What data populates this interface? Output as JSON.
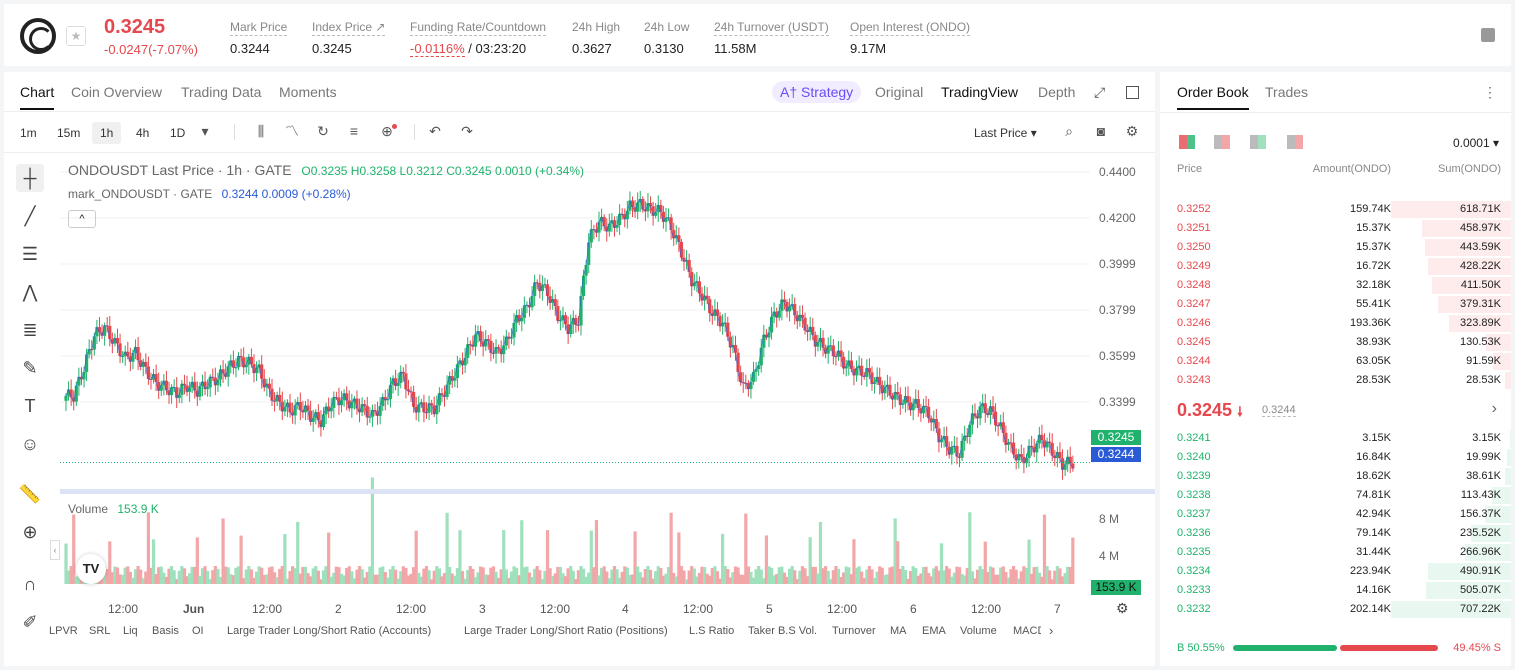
{
  "header": {
    "last_price": "0.3245",
    "change": "-0.0247(-7.07%)",
    "stats": [
      {
        "label": "Mark Price",
        "value": "0.3244"
      },
      {
        "label": "Index Price ↗",
        "value": "0.3245"
      },
      {
        "label": "Funding Rate/Countdown",
        "value_red": "-0.0116%",
        "value": " / 03:23:20"
      },
      {
        "label": "24h High",
        "value": "0.3627"
      },
      {
        "label": "24h Low",
        "value": "0.3130"
      },
      {
        "label": "24h Turnover (USDT)",
        "value": "11.58M"
      },
      {
        "label": "Open Interest (ONDO)",
        "value": "9.17M"
      }
    ]
  },
  "chart_tabs": [
    "Chart",
    "Coin Overview",
    "Trading Data",
    "Moments"
  ],
  "view_tabs": {
    "strategy": "A† Strategy",
    "original": "Original",
    "tradingview": "TradingView",
    "depth": "Depth"
  },
  "intervals": [
    "1m",
    "15m",
    "1h",
    "4h",
    "1D"
  ],
  "price_type": "Last Price",
  "legend": {
    "main": "ONDOUSDT Last Price · 1h · GATE",
    "ohlc": {
      "o": "0.3235",
      "h": "0.3258",
      "l": "0.3212",
      "c": "0.3245",
      "chg": "0.0010 (+0.34%)"
    },
    "mark_label": "mark_ONDOUSDT · GATE",
    "mark_value": "0.3244 0.0009 (+0.28%)"
  },
  "volume_label": "Volume",
  "volume_value": "153.9 K",
  "y_ticks": [
    "0.4400",
    "0.4200",
    "0.3999",
    "0.3799",
    "0.3599",
    "0.3399"
  ],
  "price_tag_last": "0.3245",
  "price_tag_mark": "0.3244",
  "vol_ticks": [
    "8 M",
    "4 M"
  ],
  "vol_tag": "153.9 K",
  "x_ticks": [
    "12:00",
    "Jun",
    "12:00",
    "2",
    "12:00",
    "3",
    "12:00",
    "4",
    "12:00",
    "5",
    "12:00",
    "6",
    "12:00",
    "7"
  ],
  "indicators": [
    "LPVR",
    "SRL",
    "Liq",
    "Basis",
    "OI",
    "Large Trader Long/Short Ratio (Accounts)",
    "Large Trader Long/Short Ratio (Positions)",
    "L.S Ratio",
    "Taker B.S Vol.",
    "Turnover",
    "MA",
    "EMA",
    "Volume",
    "MACD"
  ],
  "chart_data": {
    "type": "candlestick",
    "ylim": [
      0.31,
      0.445
    ],
    "series": [
      {
        "name": "ONDOUSDT",
        "values_close": [
          0.351,
          0.362,
          0.375,
          0.378,
          0.372,
          0.366,
          0.368,
          0.361,
          0.356,
          0.354,
          0.352,
          0.355,
          0.353,
          0.356,
          0.358,
          0.362,
          0.365,
          0.364,
          0.361,
          0.352,
          0.348,
          0.345,
          0.347,
          0.343,
          0.341,
          0.348,
          0.35,
          0.348,
          0.346,
          0.343,
          0.348,
          0.356,
          0.359,
          0.347,
          0.346,
          0.346,
          0.353,
          0.36,
          0.367,
          0.375,
          0.372,
          0.368,
          0.372,
          0.381,
          0.386,
          0.396,
          0.392,
          0.383,
          0.378,
          0.381,
          0.413,
          0.42,
          0.418,
          0.421,
          0.426,
          0.427,
          0.425,
          0.424,
          0.418,
          0.408,
          0.397,
          0.391,
          0.384,
          0.38,
          0.37,
          0.354,
          0.358,
          0.373,
          0.383,
          0.388,
          0.384,
          0.379,
          0.373,
          0.37,
          0.368,
          0.363,
          0.361,
          0.36,
          0.356,
          0.353,
          0.35,
          0.348,
          0.347,
          0.344,
          0.335,
          0.33,
          0.328,
          0.34,
          0.346,
          0.345,
          0.338,
          0.33,
          0.325,
          0.33,
          0.334,
          0.329,
          0.324,
          0.3245
        ]
      }
    ],
    "volume_unit": "M"
  },
  "orderbook": {
    "tabs": [
      "Order Book",
      "Trades"
    ],
    "precision": "0.0001",
    "headers": [
      "Price",
      "Amount(ONDO)",
      "Sum(ONDO)"
    ],
    "asks": [
      {
        "price": "0.3252",
        "amount": "159.74K",
        "sum": "618.71K",
        "fill": 1.0
      },
      {
        "price": "0.3251",
        "amount": "15.37K",
        "sum": "458.97K",
        "fill": 0.74
      },
      {
        "price": "0.3250",
        "amount": "15.37K",
        "sum": "443.59K",
        "fill": 0.72
      },
      {
        "price": "0.3249",
        "amount": "16.72K",
        "sum": "428.22K",
        "fill": 0.69
      },
      {
        "price": "0.3248",
        "amount": "32.18K",
        "sum": "411.50K",
        "fill": 0.66
      },
      {
        "price": "0.3247",
        "amount": "55.41K",
        "sum": "379.31K",
        "fill": 0.61
      },
      {
        "price": "0.3246",
        "amount": "193.36K",
        "sum": "323.89K",
        "fill": 0.52
      },
      {
        "price": "0.3245",
        "amount": "38.93K",
        "sum": "130.53K",
        "fill": 0.21
      },
      {
        "price": "0.3244",
        "amount": "63.05K",
        "sum": "91.59K",
        "fill": 0.15
      },
      {
        "price": "0.3243",
        "amount": "28.53K",
        "sum": "28.53K",
        "fill": 0.05
      }
    ],
    "mid_price": "0.3245",
    "mid_arrow": "🠗",
    "mid_mark": "0.3244",
    "bids": [
      {
        "price": "0.3241",
        "amount": "3.15K",
        "sum": "3.15K",
        "fill": 0.004
      },
      {
        "price": "0.3240",
        "amount": "16.84K",
        "sum": "19.99K",
        "fill": 0.03
      },
      {
        "price": "0.3239",
        "amount": "18.62K",
        "sum": "38.61K",
        "fill": 0.05
      },
      {
        "price": "0.3238",
        "amount": "74.81K",
        "sum": "113.43K",
        "fill": 0.16
      },
      {
        "price": "0.3237",
        "amount": "42.94K",
        "sum": "156.37K",
        "fill": 0.22
      },
      {
        "price": "0.3236",
        "amount": "79.14K",
        "sum": "235.52K",
        "fill": 0.33
      },
      {
        "price": "0.3235",
        "amount": "31.44K",
        "sum": "266.96K",
        "fill": 0.38
      },
      {
        "price": "0.3234",
        "amount": "223.94K",
        "sum": "490.91K",
        "fill": 0.69
      },
      {
        "price": "0.3233",
        "amount": "14.16K",
        "sum": "505.07K",
        "fill": 0.71
      },
      {
        "price": "0.3232",
        "amount": "202.14K",
        "sum": "707.22K",
        "fill": 1.0
      }
    ],
    "buy_label": "B 50.55%",
    "sell_label": "49.45% S",
    "buy_pct": 50.55
  }
}
